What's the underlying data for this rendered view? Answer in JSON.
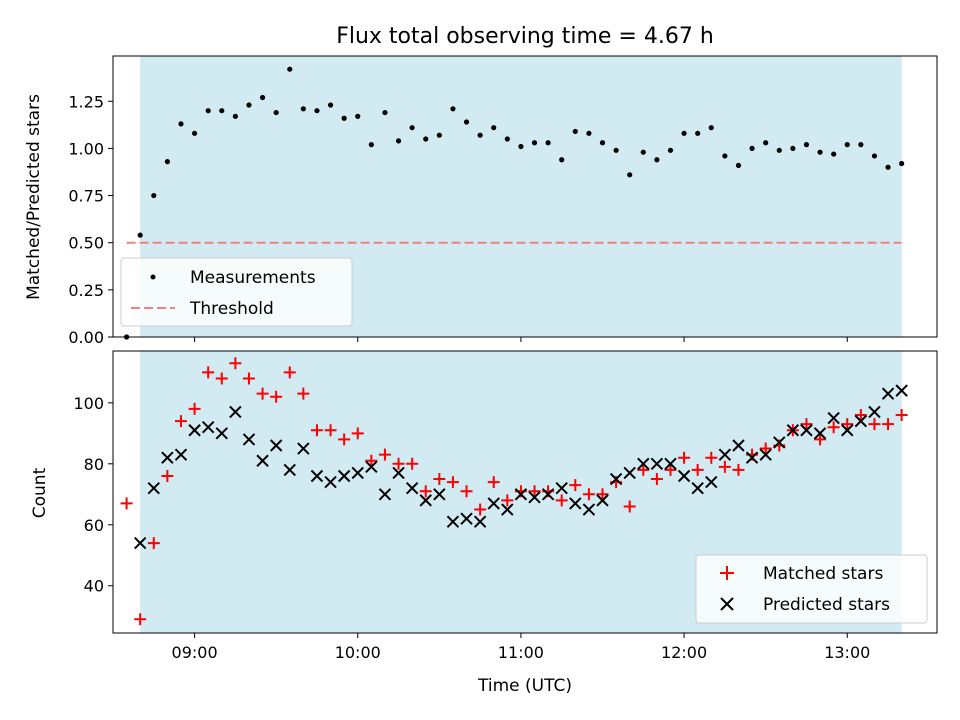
{
  "title": "Flux total observing time = 4.67 h",
  "colors": {
    "shade": "#add8e6",
    "threshold": "#f08080",
    "matched": "#ff0000",
    "predicted": "#000000",
    "measurements": "#000000"
  },
  "chart_data": [
    {
      "type": "scatter",
      "ylabel": "Matched/Predicted stars",
      "xlim": [
        "08:30",
        "13:33"
      ],
      "ylim": [
        0,
        1.49
      ],
      "yticks": [
        "0.00",
        "0.25",
        "0.50",
        "0.75",
        "1.00",
        "1.25"
      ],
      "xticks": [
        "09:00",
        "10:00",
        "11:00",
        "12:00",
        "13:00"
      ],
      "shaded_span": [
        "08:40",
        "13:20"
      ],
      "legend_position": "lower-left",
      "threshold": {
        "name": "Threshold",
        "y": 0.5,
        "x_range": [
          "08:35",
          "13:20"
        ]
      },
      "series": [
        {
          "name": "Measurements",
          "x": [
            "08:35",
            "08:40",
            "08:45",
            "08:50",
            "08:55",
            "09:00",
            "09:05",
            "09:10",
            "09:15",
            "09:20",
            "09:25",
            "09:30",
            "09:35",
            "09:40",
            "09:45",
            "09:50",
            "09:55",
            "10:00",
            "10:05",
            "10:10",
            "10:15",
            "10:20",
            "10:25",
            "10:30",
            "10:35",
            "10:40",
            "10:45",
            "10:50",
            "10:55",
            "11:00",
            "11:05",
            "11:10",
            "11:15",
            "11:20",
            "11:25",
            "11:30",
            "11:35",
            "11:40",
            "11:45",
            "11:50",
            "11:55",
            "12:00",
            "12:05",
            "12:10",
            "12:15",
            "12:20",
            "12:25",
            "12:30",
            "12:35",
            "12:40",
            "12:45",
            "12:50",
            "12:55",
            "13:00",
            "13:05",
            "13:10",
            "13:15",
            "13:20"
          ],
          "y": [
            0.0,
            0.54,
            0.75,
            0.93,
            1.13,
            1.08,
            1.2,
            1.2,
            1.17,
            1.23,
            1.27,
            1.19,
            1.42,
            1.21,
            1.2,
            1.23,
            1.16,
            1.17,
            1.02,
            1.19,
            1.04,
            1.11,
            1.05,
            1.07,
            1.21,
            1.14,
            1.07,
            1.11,
            1.05,
            1.01,
            1.03,
            1.03,
            0.94,
            1.09,
            1.08,
            1.03,
            0.99,
            0.86,
            0.98,
            0.94,
            0.99,
            1.08,
            1.08,
            1.11,
            0.96,
            0.91,
            1.0,
            1.03,
            0.99,
            1.0,
            1.02,
            0.98,
            0.97,
            1.02,
            1.02,
            0.96,
            0.9,
            0.92
          ]
        }
      ]
    },
    {
      "type": "scatter",
      "xlabel": "Time (UTC)",
      "ylabel": "Count",
      "xlim": [
        "08:30",
        "13:33"
      ],
      "ylim": [
        24.5,
        117
      ],
      "yticks": [
        "40",
        "60",
        "80",
        "100"
      ],
      "xticks": [
        "09:00",
        "10:00",
        "11:00",
        "12:00",
        "13:00"
      ],
      "shaded_span": [
        "08:40",
        "13:20"
      ],
      "legend_position": "lower-right",
      "series": [
        {
          "name": "Matched stars",
          "x": [
            "08:35",
            "08:40",
            "08:45",
            "08:50",
            "08:55",
            "09:00",
            "09:05",
            "09:10",
            "09:15",
            "09:20",
            "09:25",
            "09:30",
            "09:35",
            "09:40",
            "09:45",
            "09:50",
            "09:55",
            "10:00",
            "10:05",
            "10:10",
            "10:15",
            "10:20",
            "10:25",
            "10:30",
            "10:35",
            "10:40",
            "10:45",
            "10:50",
            "10:55",
            "11:00",
            "11:05",
            "11:10",
            "11:15",
            "11:20",
            "11:25",
            "11:30",
            "11:35",
            "11:40",
            "11:45",
            "11:50",
            "11:55",
            "12:00",
            "12:05",
            "12:10",
            "12:15",
            "12:20",
            "12:25",
            "12:30",
            "12:35",
            "12:40",
            "12:45",
            "12:50",
            "12:55",
            "13:00",
            "13:05",
            "13:10",
            "13:15",
            "13:20"
          ],
          "y": [
            67,
            29,
            54,
            76,
            94,
            98,
            110,
            108,
            113,
            108,
            103,
            102,
            110,
            103,
            91,
            91,
            88,
            90,
            81,
            83,
            80,
            80,
            71,
            75,
            74,
            71,
            65,
            74,
            68,
            71,
            71,
            71,
            68,
            73,
            70,
            70,
            74,
            66,
            78,
            75,
            78,
            82,
            78,
            82,
            79,
            78,
            83,
            85,
            86,
            91,
            93,
            88,
            92,
            93,
            96,
            93,
            93,
            96
          ]
        },
        {
          "name": "Predicted stars",
          "x": [
            "08:40",
            "08:45",
            "08:50",
            "08:55",
            "09:00",
            "09:05",
            "09:10",
            "09:15",
            "09:20",
            "09:25",
            "09:30",
            "09:35",
            "09:40",
            "09:45",
            "09:50",
            "09:55",
            "10:00",
            "10:05",
            "10:10",
            "10:15",
            "10:20",
            "10:25",
            "10:30",
            "10:35",
            "10:40",
            "10:45",
            "10:50",
            "10:55",
            "11:00",
            "11:05",
            "11:10",
            "11:15",
            "11:20",
            "11:25",
            "11:30",
            "11:35",
            "11:40",
            "11:45",
            "11:50",
            "11:55",
            "12:00",
            "12:05",
            "12:10",
            "12:15",
            "12:20",
            "12:25",
            "12:30",
            "12:35",
            "12:40",
            "12:45",
            "12:50",
            "12:55",
            "13:00",
            "13:05",
            "13:10",
            "13:15",
            "13:20"
          ],
          "y": [
            54,
            72,
            82,
            83,
            91,
            92,
            90,
            97,
            88,
            81,
            86,
            78,
            85,
            76,
            74,
            76,
            77,
            79,
            70,
            77,
            72,
            68,
            70,
            61,
            62,
            61,
            67,
            65,
            70,
            69,
            70,
            72,
            67,
            65,
            68,
            75,
            77,
            80,
            80,
            80,
            76,
            72,
            74,
            83,
            86,
            82,
            83,
            87,
            91,
            91,
            90,
            95,
            91,
            94,
            97,
            103,
            104
          ]
        }
      ]
    }
  ]
}
